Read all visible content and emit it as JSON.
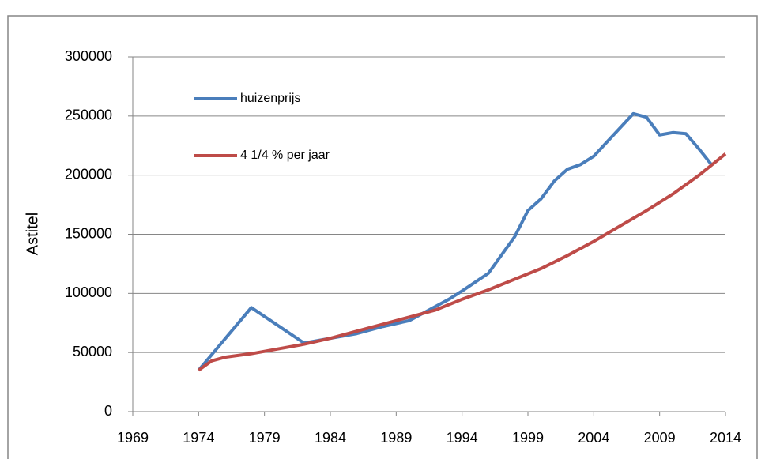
{
  "chart_data": {
    "type": "line",
    "y_label": "Astitel",
    "xlim": [
      1969,
      2014
    ],
    "xticks": [
      1969,
      1974,
      1979,
      1984,
      1989,
      1994,
      1999,
      2004,
      2009,
      2014
    ],
    "ylim": [
      0,
      300000
    ],
    "yticks": [
      0,
      50000,
      100000,
      150000,
      200000,
      250000,
      300000
    ],
    "grid": true,
    "legend": "top-left",
    "series": [
      {
        "name": "huizenprijs",
        "color": "#4a7ebb",
        "x": [
          1974,
          1978,
          1982,
          1984,
          1986,
          1988,
          1990,
          1991,
          1993,
          1994,
          1996,
          1998,
          1999,
          2000,
          2001,
          2002,
          2003,
          2004,
          2005,
          2006,
          2007,
          2008,
          2009,
          2010,
          2011,
          2012,
          2013
        ],
        "values": [
          35000,
          88000,
          58000,
          62000,
          66000,
          72000,
          77000,
          83000,
          95000,
          102000,
          117000,
          148000,
          170000,
          180000,
          195000,
          205000,
          209000,
          216000,
          228000,
          240000,
          252000,
          249000,
          234000,
          236000,
          235000,
          222000,
          208000
        ]
      },
      {
        "name": "4 1/4 % per jaar",
        "color": "#be4b48",
        "x": [
          1974,
          1975,
          1976,
          1978,
          1980,
          1982,
          1984,
          1986,
          1988,
          1990,
          1992,
          1994,
          1996,
          1998,
          2000,
          2002,
          2004,
          2006,
          2008,
          2010,
          2012,
          2014
        ],
        "values": [
          35000,
          43000,
          46000,
          49000,
          53000,
          57000,
          62000,
          68000,
          74000,
          80000,
          86000,
          95000,
          103000,
          112000,
          121000,
          132000,
          144000,
          157000,
          170000,
          184000,
          200000,
          218000
        ]
      }
    ]
  }
}
